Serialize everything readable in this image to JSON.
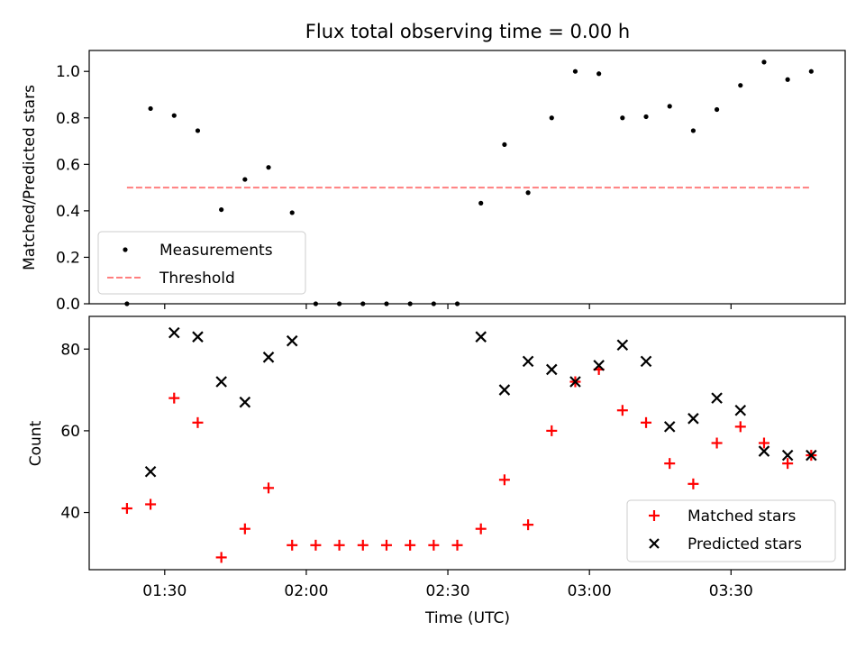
{
  "chart_data": [
    {
      "type": "scatter",
      "title": "Flux total observing time = 0.00 h",
      "xlabel": "",
      "ylabel": "Matched/Predicted stars",
      "ylim": [
        0,
        1.09
      ],
      "yticks": [
        "0.0",
        "0.2",
        "0.4",
        "0.6",
        "0.8",
        "1.0"
      ],
      "xlim_minutes": [
        74,
        234
      ],
      "legend_position": "lower-left",
      "x": [
        "01:22",
        "01:27",
        "01:32",
        "01:37",
        "01:42",
        "01:47",
        "01:52",
        "01:57",
        "02:02",
        "02:07",
        "02:12",
        "02:17",
        "02:22",
        "02:27",
        "02:32",
        "02:37",
        "02:42",
        "02:47",
        "02:52",
        "02:57",
        "03:02",
        "03:07",
        "03:12",
        "03:17",
        "03:22",
        "03:27",
        "03:32",
        "03:37",
        "03:42",
        "03:47"
      ],
      "series": [
        {
          "name": "Measurements",
          "color": "#000000",
          "marker": "dot",
          "values": [
            0.0,
            0.84,
            0.81,
            0.745,
            0.405,
            0.535,
            0.587,
            0.392,
            0.0,
            0.0,
            0.0,
            0.0,
            0.0,
            0.0,
            0.0,
            0.433,
            0.685,
            0.478,
            0.8,
            1.0,
            0.99,
            0.8,
            0.805,
            0.85,
            0.745,
            0.836,
            0.94,
            1.04,
            0.965,
            1.0
          ]
        },
        {
          "name": "Threshold",
          "color": "#ff7f7f",
          "style": "dashed",
          "x_range": [
            "01:22",
            "03:47"
          ],
          "value": 0.5
        }
      ]
    },
    {
      "type": "scatter",
      "xlabel": "Time (UTC)",
      "ylabel": "Count",
      "ylim": [
        26,
        88
      ],
      "yticks": [
        "40",
        "60",
        "80"
      ],
      "xticks": [
        "01:30",
        "02:00",
        "02:30",
        "03:00",
        "03:30"
      ],
      "xlim_minutes": [
        74,
        234
      ],
      "legend_position": "lower-right",
      "x": [
        "01:22",
        "01:27",
        "01:32",
        "01:37",
        "01:42",
        "01:47",
        "01:52",
        "01:57",
        "02:02",
        "02:07",
        "02:12",
        "02:17",
        "02:22",
        "02:27",
        "02:32",
        "02:37",
        "02:42",
        "02:47",
        "02:52",
        "02:57",
        "03:02",
        "03:07",
        "03:12",
        "03:17",
        "03:22",
        "03:27",
        "03:32",
        "03:37",
        "03:42",
        "03:47"
      ],
      "series": [
        {
          "name": "Matched stars",
          "color": "#ff0000",
          "marker": "plus",
          "values": [
            41,
            42,
            68,
            62,
            29,
            36,
            46,
            32,
            32,
            32,
            32,
            32,
            32,
            32,
            32,
            36,
            48,
            37,
            60,
            72,
            75,
            65,
            62,
            52,
            47,
            57,
            61,
            57,
            52,
            54
          ]
        },
        {
          "name": "Predicted stars",
          "color": "#000000",
          "marker": "x",
          "values": [
            null,
            50,
            84,
            83,
            72,
            67,
            78,
            82,
            null,
            null,
            null,
            null,
            null,
            null,
            null,
            83,
            70,
            77,
            75,
            72,
            76,
            81,
            77,
            61,
            63,
            68,
            65,
            55,
            54,
            54
          ]
        }
      ]
    }
  ]
}
